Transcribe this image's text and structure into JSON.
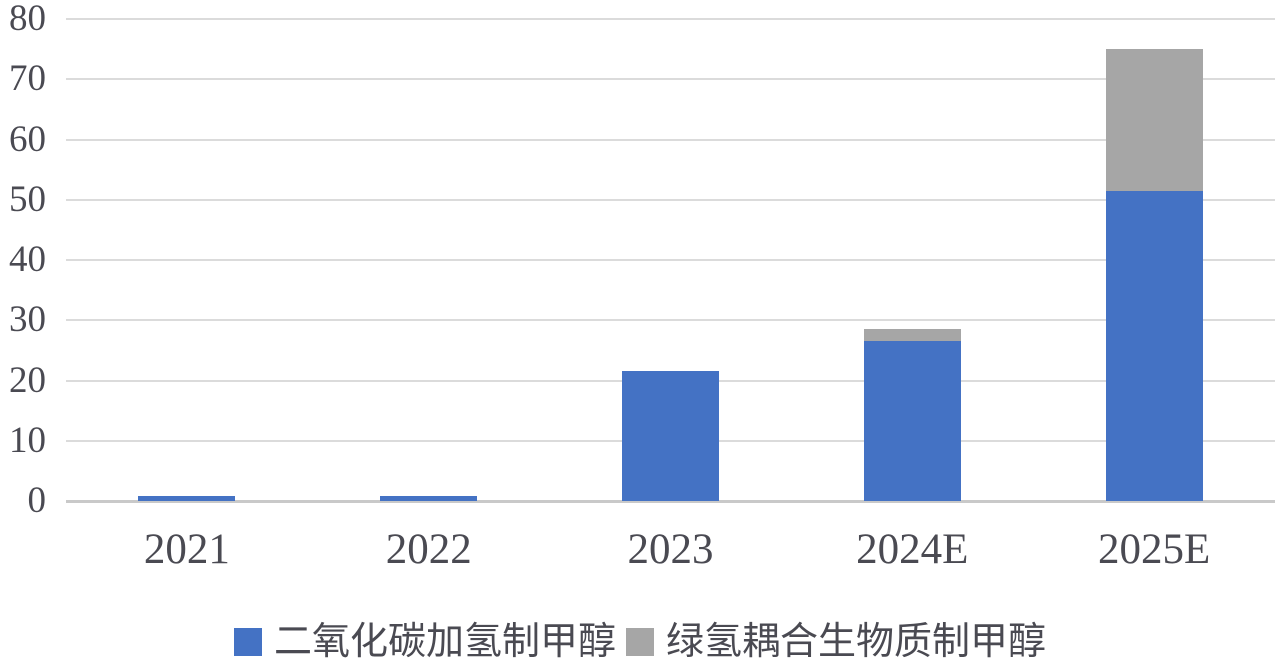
{
  "chart_data": {
    "type": "bar",
    "stacked": true,
    "title": "",
    "categories": [
      "2021",
      "2022",
      "2023",
      "2024E",
      "2025E"
    ],
    "series": [
      {
        "name": "二氧化碳加氢制甲醇",
        "color": "#4472C4",
        "values": [
          0.8,
          0.8,
          21.5,
          26.5,
          51.5
        ]
      },
      {
        "name": "绿氢耦合生物质制甲醇",
        "color": "#A6A6A6",
        "values": [
          0,
          0,
          0,
          2,
          23.5
        ]
      }
    ],
    "stack_totals": [
      0.8,
      0.8,
      21.5,
      28.5,
      75
    ],
    "ylim": [
      0,
      80
    ],
    "yticks": [
      0,
      10,
      20,
      30,
      40,
      50,
      60,
      70,
      80
    ],
    "xlabel": "",
    "ylabel": "",
    "grid": true,
    "legend_position": "bottom"
  },
  "style_colors": {
    "background": "#FFFFFF",
    "axis_text": "#4a4a52",
    "gridline": "#DBDBDB",
    "zero_axis_line": "#C9C9C9",
    "series_blue": "#4472C4",
    "series_gray": "#A6A6A6"
  }
}
